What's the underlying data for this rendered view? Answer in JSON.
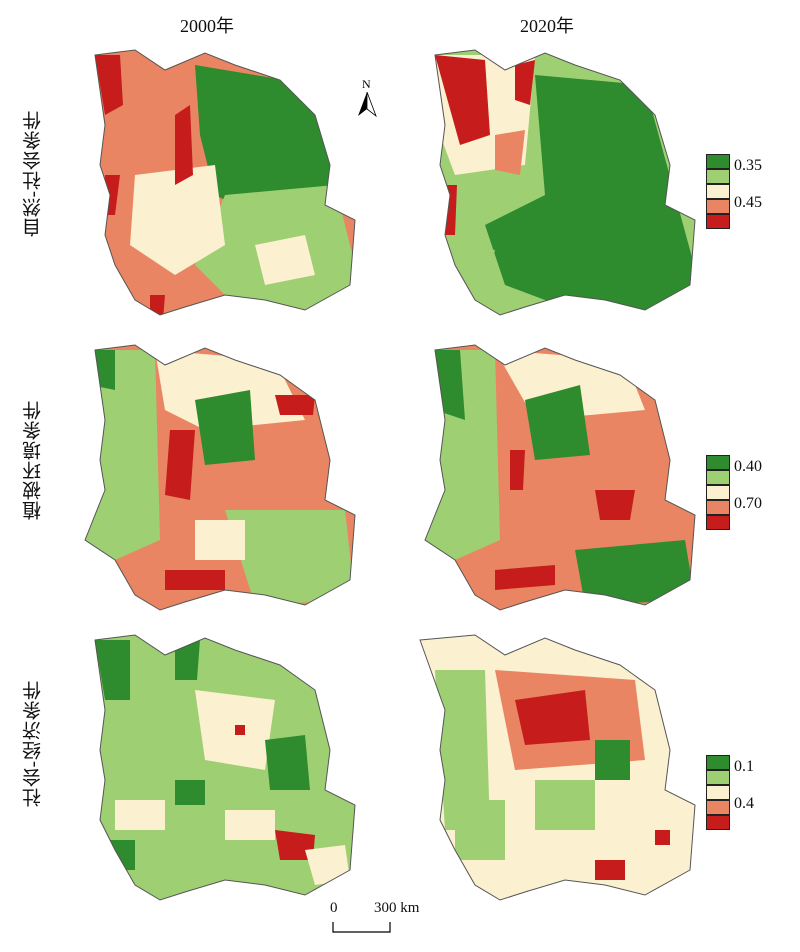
{
  "columns": [
    "2000年",
    "2020年"
  ],
  "rows": [
    {
      "label": "自然-社会条件",
      "legend": [
        "0.35",
        "0.45"
      ]
    },
    {
      "label": "植被环境条件",
      "legend": [
        "0.40",
        "0.70"
      ]
    },
    {
      "label": "社会-经济条件",
      "legend": [
        "0.1",
        "0.4"
      ]
    }
  ],
  "colors": {
    "class1": "#2e8b2e",
    "class2": "#9fcf73",
    "class3": "#fbf0d0",
    "class4": "#e98562",
    "class5": "#c61c1c"
  },
  "north": "N",
  "scale": {
    "start": "0",
    "end": "300 km"
  }
}
